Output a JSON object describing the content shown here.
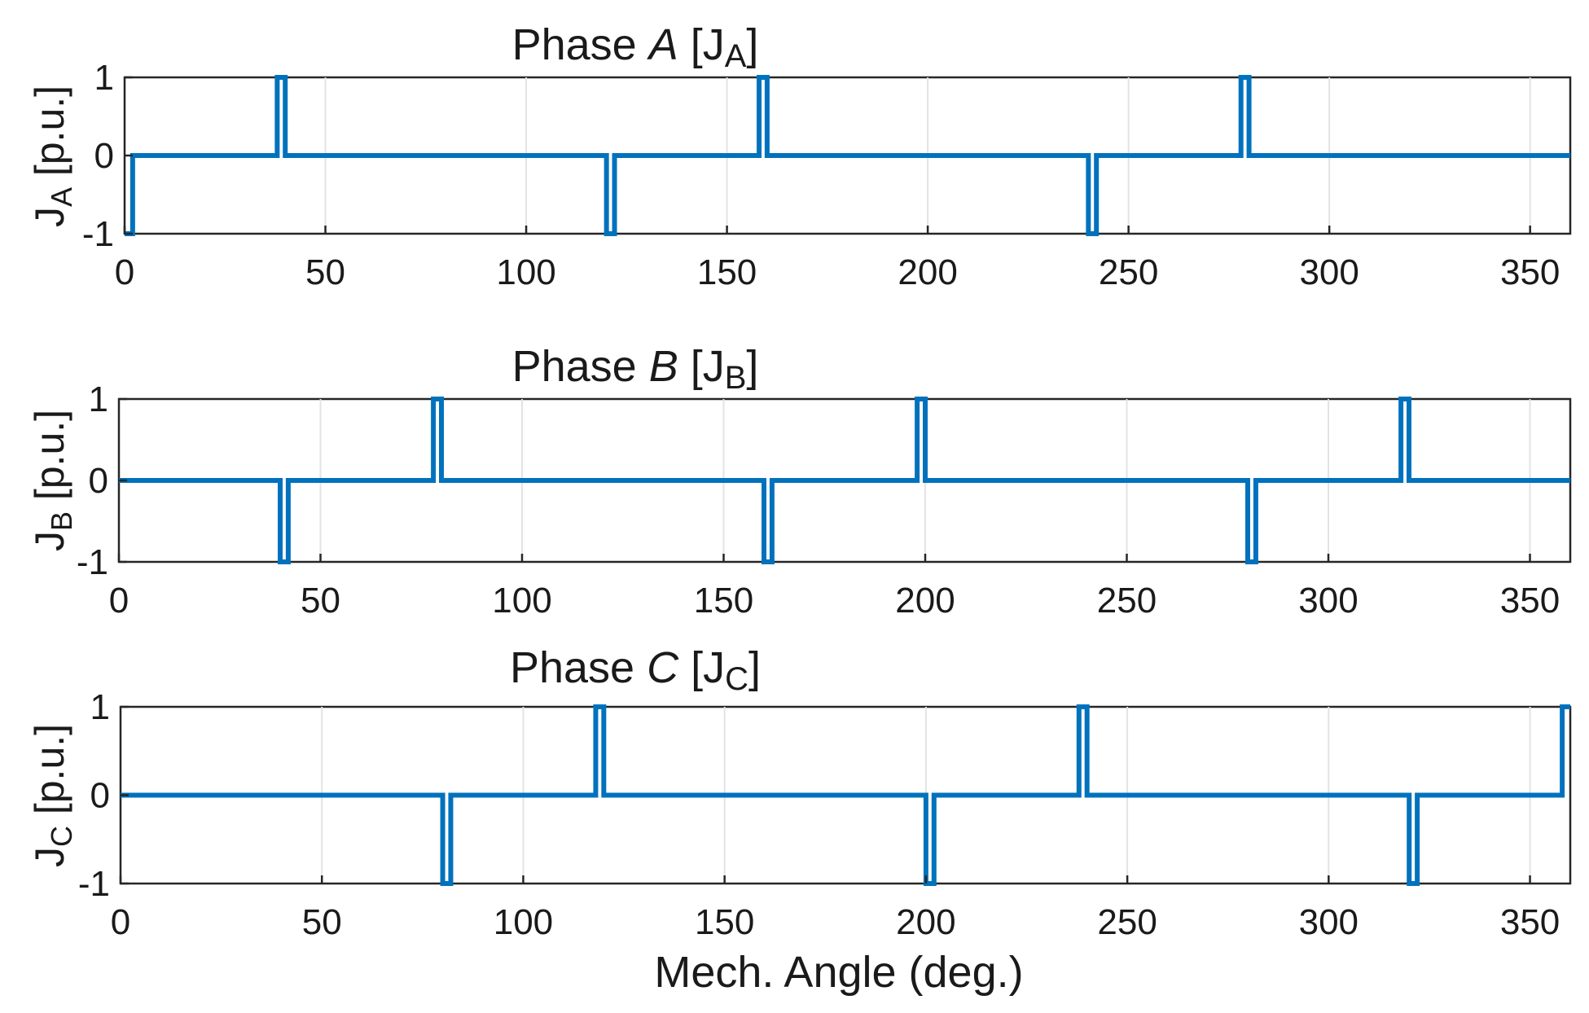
{
  "chart_data": [
    {
      "type": "line",
      "title_main": "Phase ",
      "title_italic": "A",
      "title_open": " [J",
      "title_sub": "A",
      "title_close": "]",
      "ylabel_main": "J",
      "ylabel_sub": "A",
      "ylabel_unit": " [p.u.]",
      "xlabel": "",
      "xlim": [
        0,
        360
      ],
      "ylim": [
        -1,
        1
      ],
      "xticks": [
        "0",
        "50",
        "100",
        "150",
        "200",
        "250",
        "300",
        "350"
      ],
      "xtick_values": [
        0,
        50,
        100,
        150,
        200,
        250,
        300,
        350
      ],
      "yticks": [
        "-1",
        "0",
        "1"
      ],
      "ytick_values": [
        -1,
        0,
        1
      ],
      "grid": true,
      "series": [
        {
          "name": "J_A",
          "color": "#0072BD",
          "x": [
            0,
            0,
            2,
            2,
            38,
            38,
            40,
            40,
            120,
            120,
            122,
            122,
            158,
            158,
            160,
            160,
            240,
            240,
            242,
            242,
            278,
            278,
            280,
            280,
            360
          ],
          "y": [
            -1,
            -1,
            -1,
            0,
            0,
            1,
            1,
            0,
            0,
            -1,
            -1,
            0,
            0,
            1,
            1,
            0,
            0,
            -1,
            -1,
            0,
            0,
            1,
            1,
            0,
            0
          ]
        }
      ]
    },
    {
      "type": "line",
      "title_main": "Phase ",
      "title_italic": "B",
      "title_open": " [J",
      "title_sub": "B",
      "title_close": "]",
      "ylabel_main": "J",
      "ylabel_sub": "B",
      "ylabel_unit": " [p.u.]",
      "xlabel": "",
      "xlim": [
        0,
        360
      ],
      "ylim": [
        -1,
        1
      ],
      "xticks": [
        "0",
        "50",
        "100",
        "150",
        "200",
        "250",
        "300",
        "350"
      ],
      "xtick_values": [
        0,
        50,
        100,
        150,
        200,
        250,
        300,
        350
      ],
      "yticks": [
        "-1",
        "0",
        "1"
      ],
      "ytick_values": [
        -1,
        0,
        1
      ],
      "grid": true,
      "series": [
        {
          "name": "J_B",
          "color": "#0072BD",
          "x": [
            0,
            40,
            40,
            42,
            42,
            78,
            78,
            80,
            80,
            160,
            160,
            162,
            162,
            198,
            198,
            200,
            200,
            280,
            280,
            282,
            282,
            318,
            318,
            320,
            320,
            360
          ],
          "y": [
            0,
            0,
            -1,
            -1,
            0,
            0,
            1,
            1,
            0,
            0,
            -1,
            -1,
            0,
            0,
            1,
            1,
            0,
            0,
            -1,
            -1,
            0,
            0,
            1,
            1,
            0,
            0
          ]
        }
      ]
    },
    {
      "type": "line",
      "title_main": "Phase ",
      "title_italic": "C",
      "title_open": " [J",
      "title_sub": "C",
      "title_close": "]",
      "ylabel_main": "J",
      "ylabel_sub": "C",
      "ylabel_unit": " [p.u.]",
      "xlabel": "Mech. Angle (deg.)",
      "xlim": [
        0,
        360
      ],
      "ylim": [
        -1,
        1
      ],
      "xticks": [
        "0",
        "50",
        "100",
        "150",
        "200",
        "250",
        "300",
        "350"
      ],
      "xtick_values": [
        0,
        50,
        100,
        150,
        200,
        250,
        300,
        350
      ],
      "yticks": [
        "-1",
        "0",
        "1"
      ],
      "ytick_values": [
        -1,
        0,
        1
      ],
      "grid": true,
      "series": [
        {
          "name": "J_C",
          "color": "#0072BD",
          "x": [
            0,
            80,
            80,
            82,
            82,
            118,
            118,
            120,
            120,
            200,
            200,
            202,
            202,
            238,
            238,
            240,
            240,
            320,
            320,
            322,
            322,
            358,
            358,
            360
          ],
          "y": [
            0,
            0,
            -1,
            -1,
            0,
            0,
            1,
            1,
            0,
            0,
            -1,
            -1,
            0,
            0,
            1,
            1,
            0,
            0,
            -1,
            -1,
            0,
            0,
            1,
            1
          ]
        }
      ]
    }
  ]
}
